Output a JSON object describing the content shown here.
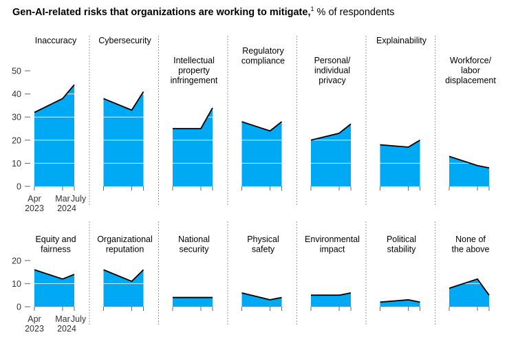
{
  "title": {
    "bold": "Gen-AI-related risks that organizations are working to mitigate,",
    "footnote": "1",
    "rest": " % of respondents"
  },
  "colors": {
    "area": "#00A9F4",
    "line": "#000000",
    "divider": "#999999",
    "gridline": "#ffffff",
    "text": "#333333"
  },
  "chart_data": {
    "type": "area",
    "x": [
      "Apr 2023",
      "Mar 2024",
      "July 2024"
    ],
    "x_tick_labels": [
      {
        "line1": "Apr",
        "line2": "2023"
      },
      {
        "line1": "Mar",
        "line2": "2024"
      },
      {
        "line1": "July",
        "line2": ""
      }
    ],
    "rows": [
      {
        "ylim": [
          0,
          50
        ],
        "yticks": [
          "0",
          "10",
          "20",
          "30",
          "40",
          "50"
        ],
        "panels": [
          {
            "label": [
              "Inaccuracy"
            ],
            "values": [
              32,
              38,
              44
            ]
          },
          {
            "label": [
              "Cybersecurity"
            ],
            "values": [
              38,
              33,
              41
            ]
          },
          {
            "label": [
              "Intellectual",
              "property",
              "infringement"
            ],
            "values": [
              25,
              25,
              34
            ]
          },
          {
            "label": [
              "Regulatory",
              "compliance"
            ],
            "values": [
              28,
              24,
              28
            ]
          },
          {
            "label": [
              "Personal/",
              "individual",
              "privacy"
            ],
            "values": [
              20,
              23,
              27
            ]
          },
          {
            "label": [
              "Explainability"
            ],
            "values": [
              18,
              17,
              20
            ]
          },
          {
            "label": [
              "Workforce/",
              "labor",
              "displacement"
            ],
            "values": [
              13,
              9,
              8
            ]
          }
        ]
      },
      {
        "ylim": [
          0,
          20
        ],
        "yticks": [
          "0",
          "10",
          "20"
        ],
        "panels": [
          {
            "label": [
              "Equity and",
              "fairness"
            ],
            "values": [
              16,
              12,
              14
            ]
          },
          {
            "label": [
              "Organizational",
              "reputation"
            ],
            "values": [
              16,
              11,
              16
            ]
          },
          {
            "label": [
              "National",
              "security"
            ],
            "values": [
              4,
              4,
              4
            ]
          },
          {
            "label": [
              "Physical",
              "safety"
            ],
            "values": [
              6,
              3,
              4
            ]
          },
          {
            "label": [
              "Environmental",
              "impact"
            ],
            "values": [
              5,
              5,
              6
            ]
          },
          {
            "label": [
              "Political",
              "stability"
            ],
            "values": [
              2,
              3,
              2
            ]
          },
          {
            "label": [
              "None of",
              "the above"
            ],
            "values": [
              8,
              12,
              5
            ]
          }
        ]
      }
    ]
  }
}
